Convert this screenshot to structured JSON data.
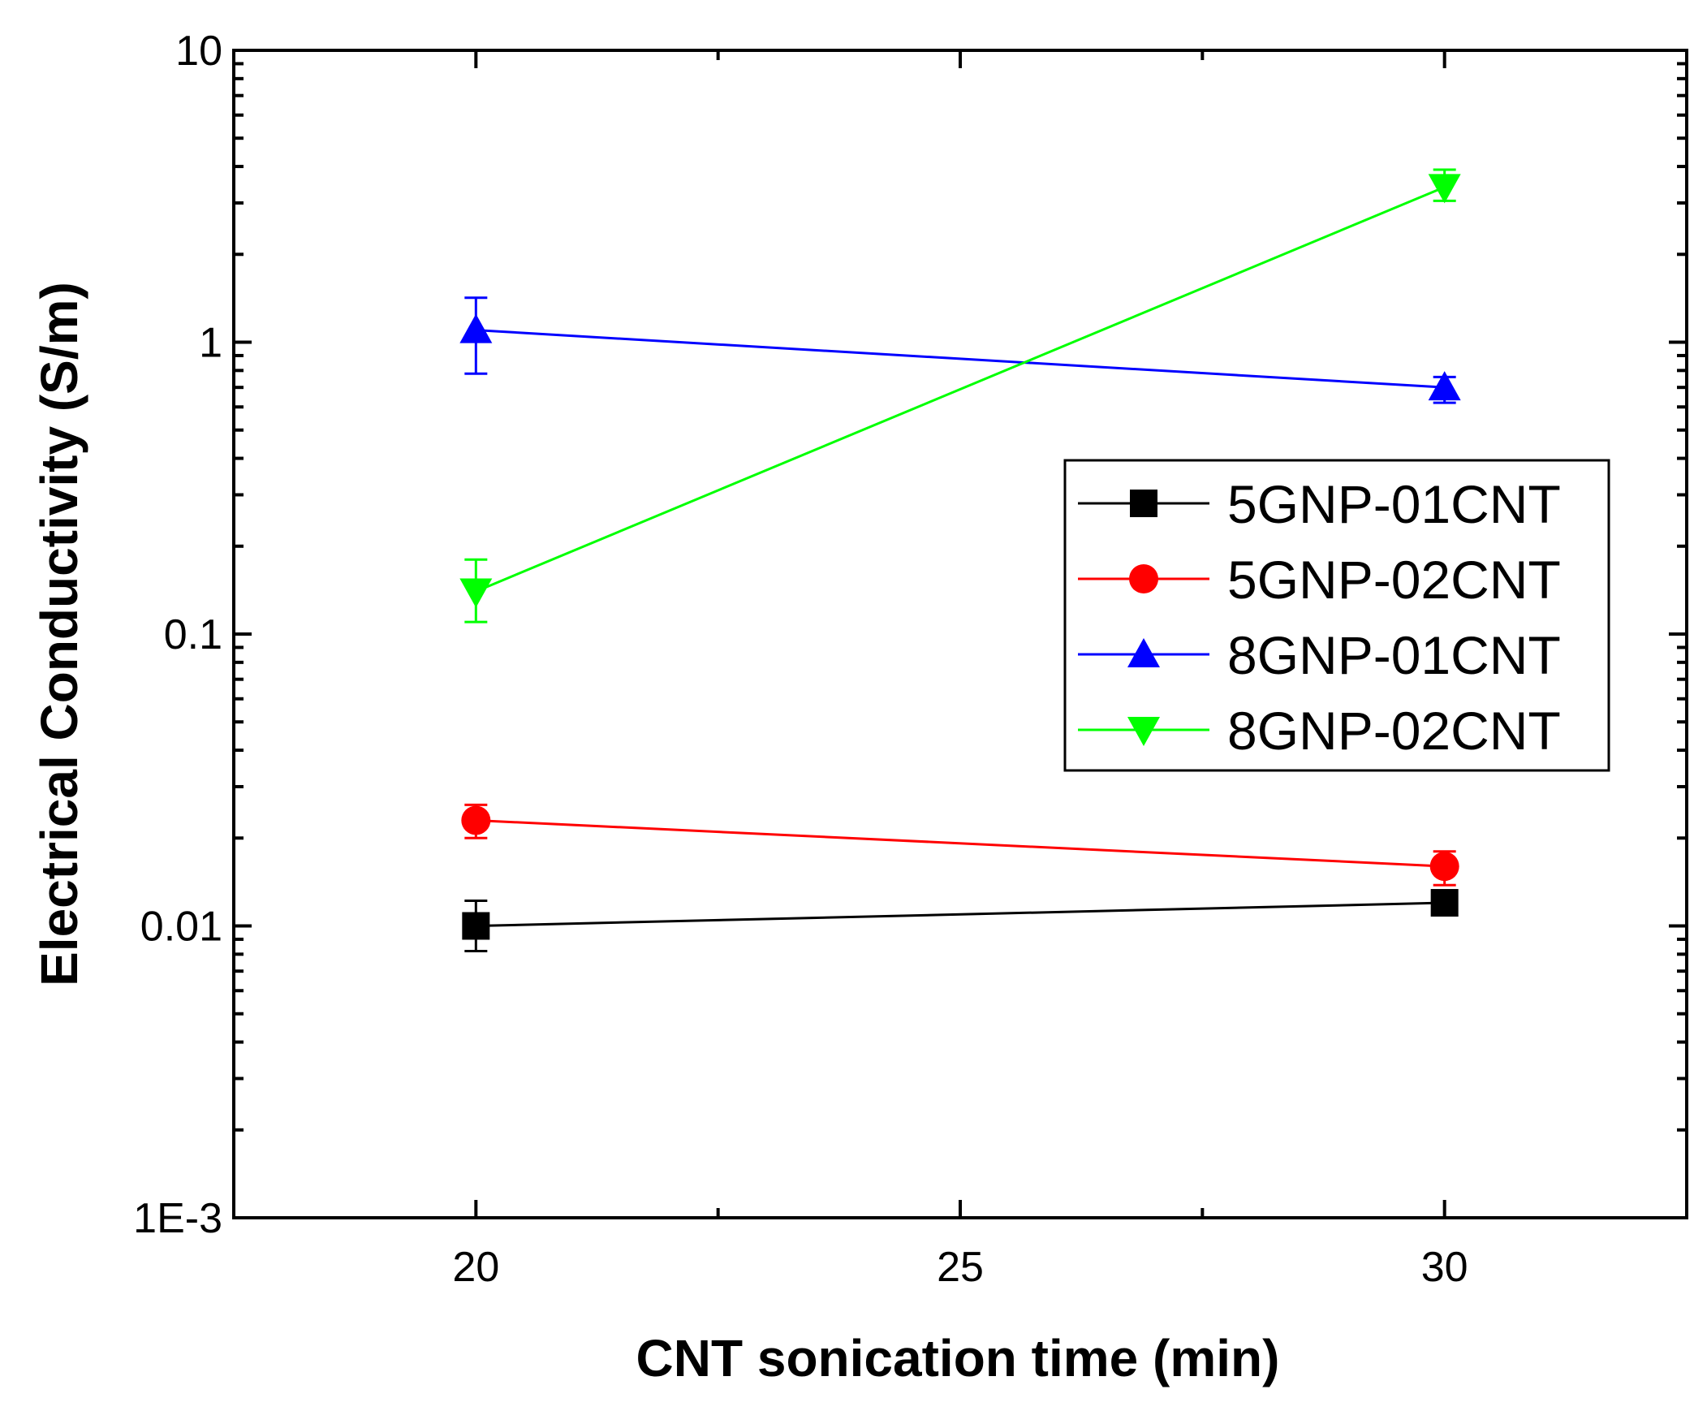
{
  "chart_data": {
    "type": "line",
    "xlabel": "CNT sonication time (min)",
    "ylabel": "Electrical Conductivity (S/m)",
    "xlim": [
      17.5,
      32.5
    ],
    "ylim": [
      0.001,
      10
    ],
    "yscale": "log",
    "xticks": [
      20,
      25,
      30
    ],
    "xtick_labels": [
      "20",
      "25",
      "30"
    ],
    "yticks": [
      0.001,
      0.01,
      0.1,
      1,
      10
    ],
    "ytick_labels": [
      "1E-3",
      "0.01",
      "0.1",
      "1",
      "10"
    ],
    "legend_position": "right-center",
    "grid": false,
    "series": [
      {
        "name": "5GNP-01CNT",
        "color": "#000000",
        "marker": "square",
        "x": [
          20,
          30
        ],
        "y": [
          0.01,
          0.012
        ],
        "yerr_low": [
          0.0082,
          0.0114
        ],
        "yerr_high": [
          0.0122,
          0.0126
        ]
      },
      {
        "name": "5GNP-02CNT",
        "color": "#ff0000",
        "marker": "circle",
        "x": [
          20,
          30
        ],
        "y": [
          0.023,
          0.016
        ],
        "yerr_low": [
          0.02,
          0.0138
        ],
        "yerr_high": [
          0.026,
          0.018
        ]
      },
      {
        "name": "8GNP-01CNT",
        "color": "#0000ff",
        "marker": "triangle-up",
        "x": [
          20,
          30
        ],
        "y": [
          1.1,
          0.7
        ],
        "yerr_low": [
          0.78,
          0.62
        ],
        "yerr_high": [
          1.42,
          0.76
        ]
      },
      {
        "name": "8GNP-02CNT",
        "color": "#00ff00",
        "marker": "triangle-down",
        "x": [
          20,
          30
        ],
        "y": [
          0.14,
          3.4
        ],
        "yerr_low": [
          0.11,
          3.05
        ],
        "yerr_high": [
          0.18,
          3.9
        ]
      }
    ]
  }
}
